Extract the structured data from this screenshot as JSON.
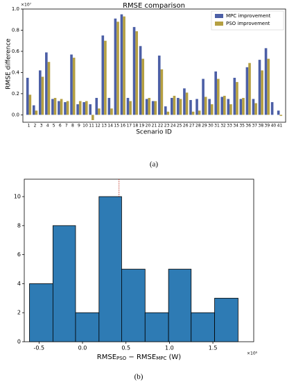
{
  "chart_data": [
    {
      "type": "grouped_bar",
      "title": "RMSE comparison",
      "xlabel": "Scenario ID",
      "ylabel": "RMSE difference",
      "y_exponent": "×10⁷",
      "caption": "(a)",
      "categories": [
        "1",
        "2",
        "3",
        "4",
        "5",
        "6",
        "7",
        "8",
        "9",
        "10",
        "11",
        "12",
        "13",
        "14",
        "15",
        "16",
        "17",
        "18",
        "19",
        "20",
        "21",
        "22",
        "23",
        "24",
        "25",
        "26",
        "27",
        "28",
        "29",
        "30",
        "31",
        "32",
        "33",
        "34",
        "35",
        "36",
        "37",
        "38",
        "39",
        "40",
        "41"
      ],
      "series": [
        {
          "name": "MPC improvement",
          "color": "#4c5fa6",
          "values": [
            0.35,
            0.09,
            0.42,
            0.59,
            0.15,
            0.13,
            0.12,
            0.57,
            0.1,
            0.12,
            0.1,
            0.16,
            0.75,
            0.16,
            0.91,
            0.95,
            0.16,
            0.83,
            0.65,
            0.15,
            0.13,
            0.56,
            0.08,
            0.16,
            0.16,
            0.25,
            0.14,
            0.15,
            0.34,
            0.15,
            0.41,
            0.17,
            0.15,
            0.35,
            0.15,
            0.45,
            0.15,
            0.52,
            0.63,
            0.12,
            0.04
          ]
        },
        {
          "name": "PSO improvement",
          "color": "#b5a042",
          "values": [
            0.19,
            0.04,
            0.36,
            0.5,
            0.16,
            0.15,
            0.13,
            0.54,
            0.13,
            0.13,
            -0.05,
            0.06,
            0.7,
            0.06,
            0.88,
            0.93,
            0.13,
            0.79,
            0.53,
            0.16,
            0.13,
            0.43,
            0.03,
            0.18,
            0.15,
            0.21,
            0.03,
            0.04,
            0.17,
            0.1,
            0.34,
            0.18,
            0.1,
            0.31,
            0.16,
            0.49,
            0.11,
            0.42,
            0.53,
            0.0,
            -0.01
          ]
        }
      ],
      "ylim": [
        -0.07,
        1.0
      ],
      "yticks": [
        {
          "value": 0,
          "label": "0.0"
        },
        0.2,
        0.4,
        0.6,
        0.8,
        {
          "value": 1,
          "label": "1.0"
        }
      ],
      "legend": "upper right"
    },
    {
      "type": "histogram",
      "x_exponent": "×10⁶",
      "caption": "(b)",
      "xlabel_parts": [
        "RMSE",
        "PSO",
        " − RMSE",
        "MPC",
        " (W)"
      ],
      "bins": [
        -0.61,
        -0.34,
        -0.08,
        0.19,
        0.45,
        0.72,
        0.99,
        1.25,
        1.52,
        1.79
      ],
      "values": [
        4,
        8,
        2,
        10,
        5,
        2,
        5,
        2,
        3
      ],
      "color": "#2e7bb4",
      "reference_line_x": 0.42,
      "reference_color": "#c0392b",
      "xlim": [
        -0.67,
        1.97
      ],
      "xticks": [
        -0.5,
        {
          "value": 0,
          "label": "0.0"
        },
        0.5,
        {
          "value": 1,
          "label": "1.0"
        },
        1.5
      ],
      "ylim": [
        0,
        11.2
      ],
      "yticks": [
        0,
        2,
        4,
        6,
        8,
        10
      ]
    }
  ]
}
